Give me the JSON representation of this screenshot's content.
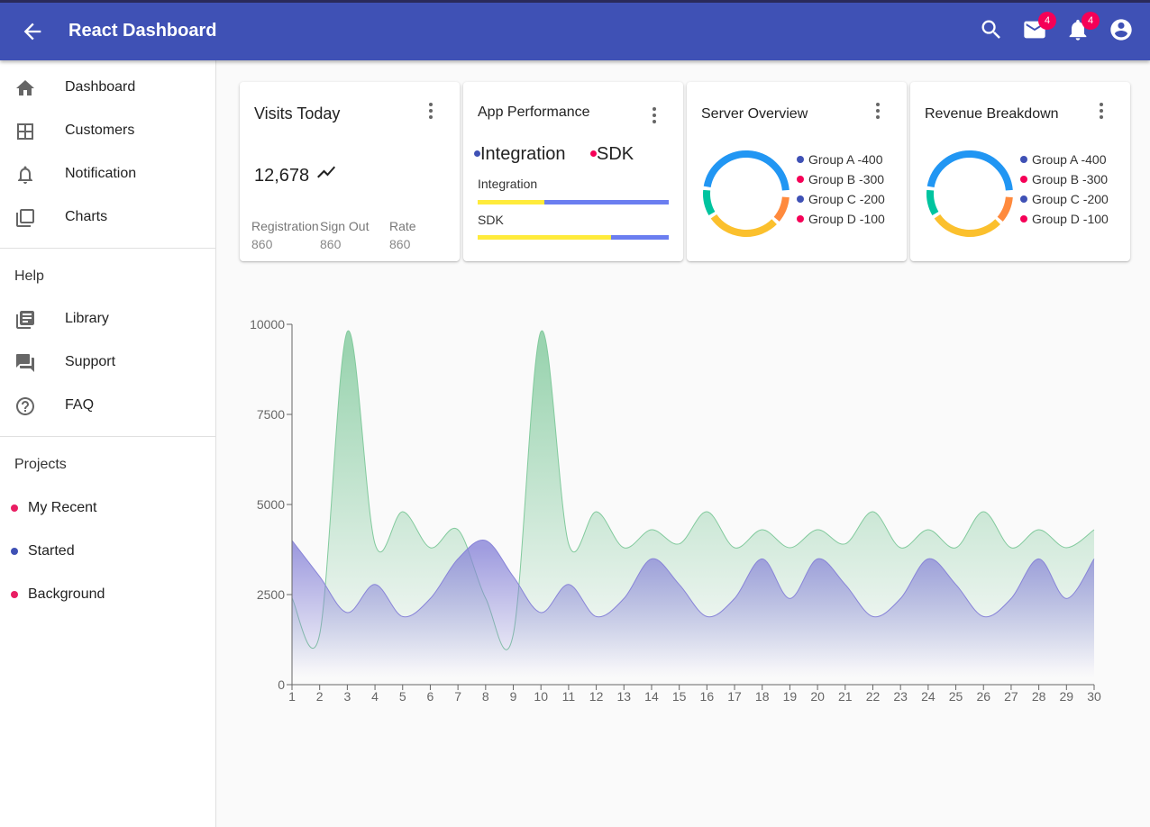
{
  "appbar": {
    "title": "React Dashboard",
    "mail_badge": "4",
    "notifications_badge": "4",
    "color": "#3f51b5"
  },
  "sidebar": {
    "items": [
      {
        "label": "Dashboard",
        "icon": "home-icon"
      },
      {
        "label": "Customers",
        "icon": "grid-icon"
      },
      {
        "label": "Notification",
        "icon": "bell-icon"
      },
      {
        "label": "Charts",
        "icon": "library-icon"
      }
    ],
    "help_header": "Help",
    "help_items": [
      {
        "label": "Library",
        "icon": "book-icon"
      },
      {
        "label": "Support",
        "icon": "forum-icon"
      },
      {
        "label": "FAQ",
        "icon": "help-circle-icon"
      }
    ],
    "projects_header": "Projects",
    "projects": [
      {
        "label": "My Recent",
        "color": "#e91e63"
      },
      {
        "label": "Started",
        "color": "#3f51b5"
      },
      {
        "label": "Background",
        "color": "#e91e63"
      }
    ]
  },
  "cards": {
    "visits": {
      "title": "Visits Today",
      "value": "12,678",
      "stats": [
        {
          "label": "Registration",
          "value": "860"
        },
        {
          "label": "Sign Out",
          "value": "860"
        },
        {
          "label": "Rate",
          "value": "860"
        }
      ]
    },
    "performance": {
      "title": "App Performance",
      "legend": [
        {
          "label": "Integration",
          "color": "#3f51b5"
        },
        {
          "label": "SDK",
          "color": "#f50057"
        }
      ],
      "bars": [
        {
          "label": "Integration",
          "progress": 0.35
        },
        {
          "label": "SDK",
          "progress": 0.7
        }
      ],
      "bar_colors": {
        "fill": "#ffeb3b",
        "track": "#6b7ef0"
      }
    },
    "server": {
      "title": "Server Overview",
      "groups": [
        {
          "label": "Group A -400",
          "dot": "#3f51b5"
        },
        {
          "label": "Group B -300",
          "dot": "#f50057"
        },
        {
          "label": "Group C -200",
          "dot": "#3f51b5"
        },
        {
          "label": "Group D -100",
          "dot": "#f50057"
        }
      ]
    },
    "revenue": {
      "title": "Revenue Breakdown",
      "groups": [
        {
          "label": "Group A -400",
          "dot": "#3f51b5"
        },
        {
          "label": "Group B -300",
          "dot": "#f50057"
        },
        {
          "label": "Group C -200",
          "dot": "#3f51b5"
        },
        {
          "label": "Group D -100",
          "dot": "#f50057"
        }
      ]
    },
    "donut_colors": [
      "#2196f3",
      "#ff8a3d",
      "#fbc02d",
      "#00c49f"
    ]
  },
  "chart_data": {
    "type": "area",
    "x": [
      1,
      2,
      3,
      4,
      5,
      6,
      7,
      8,
      9,
      10,
      11,
      12,
      13,
      14,
      15,
      16,
      17,
      18,
      19,
      20,
      21,
      22,
      23,
      24,
      25,
      26,
      27,
      28,
      29,
      30
    ],
    "series": [
      {
        "color": "#82ca9d",
        "values": [
          2400,
          1400,
          9800,
          3908,
          4800,
          3800,
          4300,
          2400,
          1400,
          9800,
          3908,
          4800,
          3800,
          4300,
          3908,
          4800,
          3800,
          4300,
          3800,
          4300,
          3908,
          4800,
          3800,
          4300,
          3800,
          4800,
          3800,
          4300,
          3800,
          4300
        ]
      },
      {
        "color": "#8884d8",
        "values": [
          4000,
          3000,
          2000,
          2780,
          1890,
          2390,
          3490,
          4000,
          3000,
          2000,
          2780,
          1890,
          2390,
          3490,
          2780,
          1890,
          2390,
          3490,
          2390,
          3490,
          2780,
          1890,
          2390,
          3490,
          2780,
          1890,
          2390,
          3490,
          2390,
          3490
        ]
      }
    ],
    "yticks": [
      0,
      2500,
      5000,
      7500,
      10000
    ],
    "ylim": [
      0,
      10000
    ],
    "xlabel": "",
    "ylabel": ""
  }
}
